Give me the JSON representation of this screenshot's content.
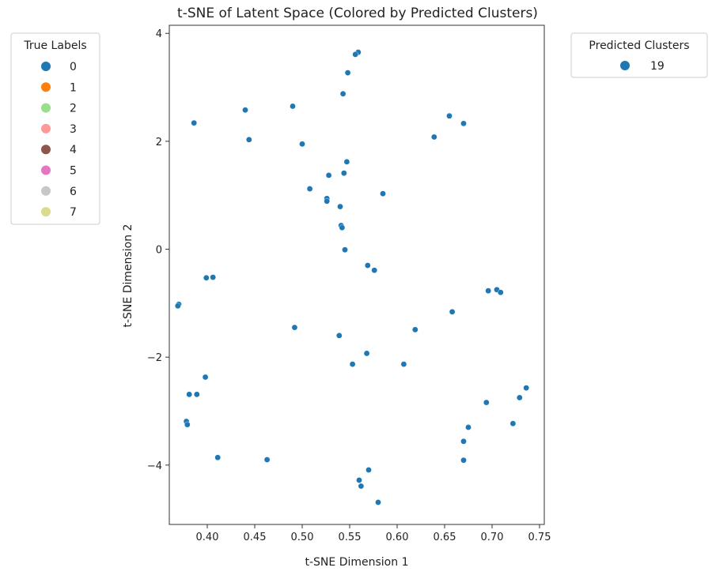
{
  "chart_data": {
    "type": "scatter",
    "title": "t-SNE of Latent Space (Colored by Predicted Clusters)",
    "xlabel": "t-SNE Dimension 1",
    "ylabel": "t-SNE Dimension 2",
    "xlim": [
      0.36,
      0.755
    ],
    "ylim": [
      -5.1,
      4.15
    ],
    "xticks": [
      0.4,
      0.45,
      0.5,
      0.55,
      0.6,
      0.65,
      0.7,
      0.75
    ],
    "xtick_labels": [
      "0.40",
      "0.45",
      "0.50",
      "0.55",
      "0.60",
      "0.65",
      "0.70",
      "0.75"
    ],
    "yticks": [
      4,
      2,
      0,
      -2,
      -4
    ],
    "ytick_labels": [
      "4",
      "2",
      "0",
      "−2",
      "−4"
    ],
    "grid": false,
    "point_color": "#1f77b4",
    "series": [
      {
        "name": "19",
        "x": [
          0.559,
          0.556,
          0.548,
          0.543,
          0.49,
          0.44,
          0.386,
          0.444,
          0.5,
          0.655,
          0.67,
          0.639,
          0.547,
          0.544,
          0.528,
          0.508,
          0.526,
          0.526,
          0.585,
          0.54,
          0.541,
          0.542,
          0.545,
          0.569,
          0.576,
          0.399,
          0.406,
          0.37,
          0.369,
          0.696,
          0.705,
          0.709,
          0.658,
          0.492,
          0.539,
          0.619,
          0.568,
          0.553,
          0.607,
          0.398,
          0.381,
          0.389,
          0.378,
          0.379,
          0.411,
          0.463,
          0.736,
          0.729,
          0.694,
          0.675,
          0.722,
          0.67,
          0.67,
          0.57,
          0.56,
          0.562,
          0.58
        ],
        "y": [
          3.65,
          3.61,
          3.27,
          2.88,
          2.65,
          2.58,
          2.34,
          2.03,
          1.95,
          2.47,
          2.33,
          2.08,
          1.62,
          1.41,
          1.37,
          1.12,
          0.94,
          0.89,
          1.03,
          0.79,
          0.44,
          0.4,
          -0.01,
          -0.3,
          -0.39,
          -0.53,
          -0.52,
          -1.02,
          -1.05,
          -0.77,
          -0.75,
          -0.8,
          -1.16,
          -1.45,
          -1.6,
          -1.49,
          -1.93,
          -2.13,
          -2.13,
          -2.37,
          -2.69,
          -2.69,
          -3.19,
          -3.25,
          -3.86,
          -3.9,
          -2.57,
          -2.75,
          -2.84,
          -3.3,
          -3.23,
          -3.56,
          -3.91,
          -4.09,
          -4.28,
          -4.39,
          -4.69
        ]
      }
    ],
    "legends": [
      {
        "title": "True Labels",
        "placement": "outside-left",
        "entries": [
          {
            "label": "0",
            "color": "#1f77b4"
          },
          {
            "label": "1",
            "color": "#ff7f0e"
          },
          {
            "label": "2",
            "color": "#98df8a"
          },
          {
            "label": "3",
            "color": "#ff9896"
          },
          {
            "label": "4",
            "color": "#8c564b"
          },
          {
            "label": "5",
            "color": "#e377c2"
          },
          {
            "label": "6",
            "color": "#c7c7c7"
          },
          {
            "label": "7",
            "color": "#dbdb8d"
          }
        ]
      },
      {
        "title": "Predicted Clusters",
        "placement": "outside-right",
        "entries": [
          {
            "label": "19",
            "color": "#1f77b4"
          }
        ]
      }
    ]
  }
}
